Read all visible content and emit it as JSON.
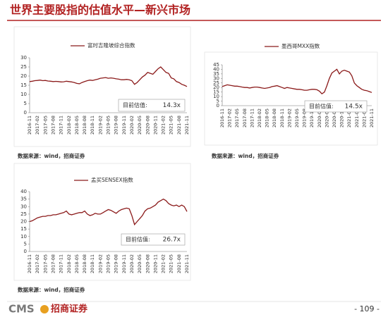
{
  "header": {
    "title": "世界主要股指的估值水平—新兴市场"
  },
  "chart_data": [
    {
      "type": "line",
      "series": [
        {
          "name": "富时吉隆坡综合指数",
          "color": "#8b1a1a",
          "values": [
            17,
            17.2,
            17.5,
            17.6,
            17.8,
            17.5,
            17.6,
            17.3,
            17.2,
            17,
            17.1,
            17,
            16.8,
            16.9,
            17.2,
            17,
            16.8,
            16.5,
            16,
            15.8,
            16.5,
            17,
            17.5,
            17.8,
            17.6,
            18,
            18.3,
            18.8,
            19,
            19.2,
            18.8,
            19,
            18.8,
            18.5,
            18.3,
            18,
            18,
            18.2,
            18,
            17.5,
            15.5,
            16.5,
            18,
            19.5,
            20.5,
            22,
            21.5,
            21,
            22.5,
            24,
            25,
            23.5,
            22,
            21.5,
            19,
            18.5,
            17,
            16.5,
            15.5,
            15,
            14.3
          ]
        }
      ],
      "categories": [
        "2016-11",
        null,
        null,
        "2017-02",
        null,
        null,
        "2017-05",
        null,
        null,
        "2017-08",
        null,
        null,
        "2017-11",
        null,
        null,
        "2018-02",
        null,
        null,
        "2018-05",
        null,
        null,
        "2018-08",
        null,
        null,
        "2018-11",
        null,
        null,
        "2019-02",
        null,
        null,
        "2019-05",
        null,
        null,
        "2019-08",
        null,
        null,
        "2019-11",
        null,
        null,
        "2020-02",
        null,
        null,
        "2020-05",
        null,
        null,
        "2020-08",
        null,
        null,
        "2020-11",
        null,
        null,
        "2021-02",
        null,
        null,
        "2021-05",
        null,
        null,
        "2021-08",
        null,
        null,
        "2021-11"
      ],
      "ylim": [
        0,
        30
      ],
      "yticks": [
        0,
        5,
        10,
        15,
        20,
        25,
        30
      ],
      "annotation": "目前估值:",
      "annotation_value": "14.3x",
      "source": "数据来源：wind，招商证券"
    },
    {
      "type": "line",
      "series": [
        {
          "name": "墨西哥MXX指数",
          "color": "#8b1a1a",
          "values": [
            21,
            22,
            23,
            22.5,
            22,
            21.5,
            21.5,
            21,
            20.5,
            20,
            20,
            19.5,
            20,
            20.5,
            20.5,
            20,
            19.5,
            19,
            19.5,
            20,
            21,
            21.5,
            22,
            21,
            20,
            19,
            20,
            19.5,
            19,
            18.5,
            18,
            18,
            17.5,
            17,
            17,
            17.5,
            18,
            18,
            17.5,
            16,
            13,
            15,
            22,
            30,
            36,
            38,
            40,
            35,
            38,
            39,
            38,
            37,
            33,
            25,
            22,
            20,
            18,
            17,
            16.5,
            15.5,
            14.5
          ]
        }
      ],
      "categories": [
        "2016-11",
        null,
        null,
        "2017-02",
        null,
        null,
        "2017-05",
        null,
        null,
        "2017-08",
        null,
        null,
        "2017-11",
        null,
        null,
        "2018-02",
        null,
        null,
        "2018-05",
        null,
        null,
        "2018-08",
        null,
        null,
        "2018-11",
        null,
        null,
        "2019-02",
        null,
        null,
        "2019-05",
        null,
        null,
        "2019-08",
        null,
        null,
        "2019-11",
        null,
        null,
        "2020-02",
        null,
        null,
        "2020-05",
        null,
        null,
        "2020-08",
        null,
        null,
        "2020-11",
        null,
        null,
        "2021-02",
        null,
        null,
        "2021-05",
        null,
        null,
        "2021-08",
        null,
        null,
        "2021-11"
      ],
      "ylim": [
        0,
        45
      ],
      "yticks": [
        0,
        5,
        10,
        15,
        20,
        25,
        30,
        35,
        40,
        45
      ],
      "annotation": "目前估值:",
      "annotation_value": "14.5x",
      "source": "数据来源：wind，招商证券"
    },
    {
      "type": "line",
      "series": [
        {
          "name": "孟买SENSEX指数",
          "color": "#8b1a1a",
          "values": [
            20,
            20.5,
            21.5,
            22.5,
            23,
            23.5,
            23.5,
            24,
            24,
            24.5,
            24.5,
            25,
            25.5,
            26,
            27,
            25,
            24.5,
            25,
            25.5,
            26,
            26,
            27,
            25,
            24,
            24.5,
            25.5,
            25,
            25,
            26,
            27,
            28,
            27.5,
            26.5,
            25.5,
            27,
            28,
            28.5,
            29,
            28.5,
            24,
            18,
            20,
            22,
            24,
            27,
            28.5,
            29,
            30,
            31,
            33,
            34,
            35,
            34,
            32,
            31,
            30.5,
            31,
            30,
            31,
            30,
            26.7
          ]
        }
      ],
      "categories": [
        "2016-11",
        null,
        null,
        "2017-02",
        null,
        null,
        "2017-05",
        null,
        null,
        "2017-08",
        null,
        null,
        "2017-11",
        null,
        null,
        "2018-02",
        null,
        null,
        "2018-05",
        null,
        null,
        "2018-08",
        null,
        null,
        "2018-11",
        null,
        null,
        "2019-02",
        null,
        null,
        "2019-05",
        null,
        null,
        "2019-08",
        null,
        null,
        "2019-11",
        null,
        null,
        "2020-02",
        null,
        null,
        "2020-05",
        null,
        null,
        "2020-08",
        null,
        null,
        "2020-11",
        null,
        null,
        "2021-02",
        null,
        null,
        "2021-05",
        null,
        null,
        "2021-08",
        null,
        null,
        "2021-11"
      ],
      "ylim": [
        0,
        40
      ],
      "yticks": [
        0,
        5,
        10,
        15,
        20,
        25,
        30,
        35,
        40
      ],
      "annotation": "目前估值:",
      "annotation_value": "26.7x",
      "source": "数据来源：wind，招商证券"
    }
  ],
  "footer": {
    "logo": "CMS",
    "logo_cn": "招商证券",
    "page": "- 109 -"
  }
}
